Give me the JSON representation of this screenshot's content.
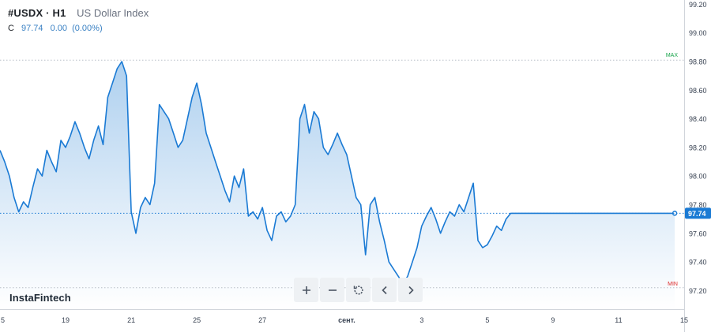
{
  "header": {
    "symbol": "#USDX · H1",
    "name": "US Dollar Index",
    "ohlc_label": "C",
    "close": "97.74",
    "change": "0.00",
    "change_pct": "(0.00%)"
  },
  "branding": {
    "logo": "InstaFintech"
  },
  "toolbar": {
    "buttons": [
      {
        "icon": "plus-icon",
        "name": "zoom-in-button"
      },
      {
        "icon": "minus-icon",
        "name": "zoom-out-button"
      },
      {
        "icon": "reset-icon",
        "name": "reset-button"
      },
      {
        "icon": "chevron-left-icon",
        "name": "scroll-left-button"
      },
      {
        "icon": "chevron-right-icon",
        "name": "scroll-right-button"
      }
    ]
  },
  "colors": {
    "line": "#1a7ad4",
    "area_top": "#a9cdee",
    "area_bottom": "#ffffff",
    "max_marker": "#16a34a",
    "min_marker": "#dc2626",
    "price_label_bg": "#1a7ad4"
  },
  "chart_data": {
    "type": "area",
    "title": "",
    "xlabel": "",
    "ylabel": "",
    "ylim": [
      97.07,
      99.23
    ],
    "y_ticks": [
      "99.20",
      "99.00",
      "98.80",
      "98.60",
      "98.40",
      "98.20",
      "98.00",
      "97.80",
      "97.60",
      "97.40",
      "97.20"
    ],
    "y_tick_values": [
      99.2,
      99.0,
      98.8,
      98.6,
      98.4,
      98.2,
      98.0,
      97.8,
      97.6,
      97.4,
      97.2
    ],
    "x_ticks": [
      "5",
      "19",
      "21",
      "25",
      "27",
      "сент.",
      "3",
      "5",
      "9",
      "11",
      "15"
    ],
    "x_tick_positions": [
      0,
      14,
      28,
      42,
      56,
      74,
      90,
      104,
      118,
      132,
      146
    ],
    "max_label": "MAX",
    "max_value": 98.81,
    "min_label": "MIN",
    "min_value": 97.22,
    "last_price": 97.74,
    "last_price_label": "97.74",
    "grid": false,
    "legend": "none",
    "series": [
      {
        "x": [
          0,
          1,
          2,
          3,
          4,
          5,
          6,
          7,
          8,
          9,
          10,
          11,
          12,
          13,
          14,
          15,
          16,
          17,
          18,
          19,
          20,
          21,
          22,
          23,
          24,
          25,
          26,
          27,
          28,
          29,
          30,
          31,
          32,
          33,
          34,
          35,
          36,
          37,
          38,
          39,
          40,
          41,
          42,
          43,
          44,
          45,
          46,
          47,
          48,
          49,
          50,
          51,
          52,
          53,
          54,
          55,
          56,
          57,
          58,
          59,
          60,
          61,
          62,
          63,
          64,
          65,
          66,
          67,
          68,
          69,
          70,
          71,
          72,
          73,
          74,
          75,
          76,
          77,
          78,
          79,
          80,
          81,
          82,
          83,
          84,
          85,
          86,
          87,
          88,
          89,
          90,
          91,
          92,
          93,
          94,
          95,
          96,
          97,
          98,
          99,
          100,
          101,
          102,
          103,
          104,
          105,
          106,
          107,
          108,
          109,
          110,
          111,
          112,
          113,
          114,
          115,
          116,
          117,
          118,
          119,
          120,
          121,
          122,
          123,
          124,
          125,
          126,
          127,
          128,
          129,
          130,
          131,
          132,
          133,
          134,
          135,
          136,
          137,
          138,
          139,
          140,
          141,
          142,
          143,
          144
        ],
        "values": [
          98.18,
          98.1,
          98.0,
          97.85,
          97.75,
          97.82,
          97.78,
          97.92,
          98.05,
          98.0,
          98.18,
          98.1,
          98.03,
          98.25,
          98.2,
          98.28,
          98.38,
          98.3,
          98.2,
          98.12,
          98.25,
          98.35,
          98.22,
          98.55,
          98.65,
          98.75,
          98.8,
          98.7,
          97.75,
          97.6,
          97.78,
          97.85,
          97.8,
          97.95,
          98.5,
          98.45,
          98.4,
          98.3,
          98.2,
          98.25,
          98.4,
          98.55,
          98.65,
          98.5,
          98.3,
          98.2,
          98.1,
          98.0,
          97.9,
          97.82,
          98.0,
          97.92,
          98.05,
          97.72,
          97.75,
          97.7,
          97.78,
          97.62,
          97.55,
          97.72,
          97.75,
          97.68,
          97.72,
          97.8,
          98.4,
          98.5,
          98.3,
          98.45,
          98.4,
          98.2,
          98.15,
          98.22,
          98.3,
          98.22,
          98.15,
          98.0,
          97.85,
          97.8,
          97.45,
          97.8,
          97.85,
          97.68,
          97.55,
          97.4,
          97.35,
          97.3,
          97.25,
          97.3,
          97.4,
          97.5,
          97.65,
          97.72,
          97.78,
          97.7,
          97.6,
          97.68,
          97.75,
          97.72,
          97.8,
          97.75,
          97.85,
          97.95,
          97.55,
          97.5,
          97.52,
          97.58,
          97.65,
          97.62,
          97.7,
          97.74,
          97.74,
          97.74,
          97.74,
          97.74,
          97.74,
          97.74,
          97.74,
          97.74,
          97.74,
          97.74,
          97.74,
          97.74,
          97.74,
          97.74,
          97.74,
          97.74,
          97.74,
          97.74,
          97.74,
          97.74,
          97.74,
          97.74,
          97.74,
          97.74,
          97.74,
          97.74,
          97.74,
          97.74,
          97.74,
          97.74,
          97.74,
          97.74,
          97.74,
          97.74,
          97.74
        ]
      }
    ]
  }
}
